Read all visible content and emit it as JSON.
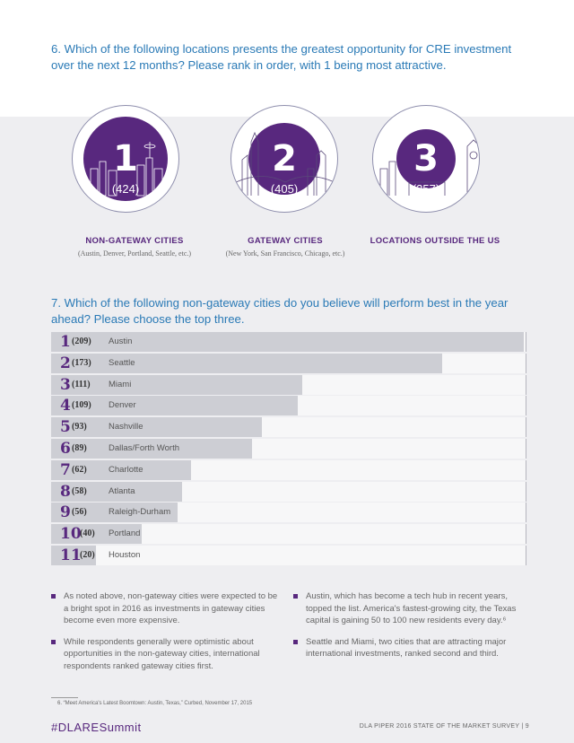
{
  "questions": {
    "q6": "6. Which of the following locations presents the greatest opportunity for CRE investment over the next 12 months? Please rank in order, with 1 being most attractive.",
    "q7": "7. Which of the following non-gateway cities do you believe will perform best in the year ahead? Please choose the top three."
  },
  "locations": [
    {
      "rank": "1",
      "count": "(424)",
      "label": "NON-GATEWAY CITIES",
      "sub": "(Austin, Denver, Portland, Seattle, etc.)"
    },
    {
      "rank": "2",
      "count": "(405)",
      "label": "GATEWAY CITIES",
      "sub": "(New York, San Francisco, Chicago, etc.)"
    },
    {
      "rank": "3",
      "count": "(257)",
      "label": "LOCATIONS OUTSIDE THE US",
      "sub": ""
    }
  ],
  "chart_data": {
    "type": "bar",
    "orientation": "horizontal",
    "categories": [
      "Austin",
      "Seattle",
      "Miami",
      "Denver",
      "Nashville",
      "Dallas/Forth Worth",
      "Charlotte",
      "Atlanta",
      "Raleigh-Durham",
      "Portland",
      "Houston"
    ],
    "ranks": [
      "1",
      "2",
      "3",
      "4",
      "5",
      "6",
      "7",
      "8",
      "9",
      "10",
      "11"
    ],
    "count_labels": [
      "(209)",
      "(173)",
      "(111)",
      "(109)",
      "(93)",
      "(89)",
      "(62)",
      "(58)",
      "(56)",
      "(40)",
      "(20)"
    ],
    "values": [
      209,
      173,
      111,
      109,
      93,
      89,
      62,
      58,
      56,
      40,
      20
    ]
  },
  "bullets": {
    "left": [
      "As noted above, non-gateway cities were expected to be a bright spot in 2016 as investments in gateway cities become even more expensive.",
      "While respondents generally were optimistic about opportunities in the non-gateway cities, international respondents ranked gateway cities first."
    ],
    "right": [
      "Austin, which has become a tech hub in recent years, topped the list. America's fastest-growing city, the Texas capital is gaining 50 to 100 new residents every day.⁶",
      "Seattle and Miami, two cities that are attracting major international investments, ranked second and third."
    ]
  },
  "footnote": "6. “Meet America's Latest Boomtown: Austin, Texas,” Curbed, November 17, 2015",
  "footer": {
    "hashtag": "#DLARESummit",
    "page_info": "DLA PIPER 2016 STATE OF THE MARKET SURVEY  |  9"
  },
  "colors": {
    "purple": "#58287e",
    "question_blue": "#2a7ab6",
    "bar_gray": "#cdced4"
  }
}
